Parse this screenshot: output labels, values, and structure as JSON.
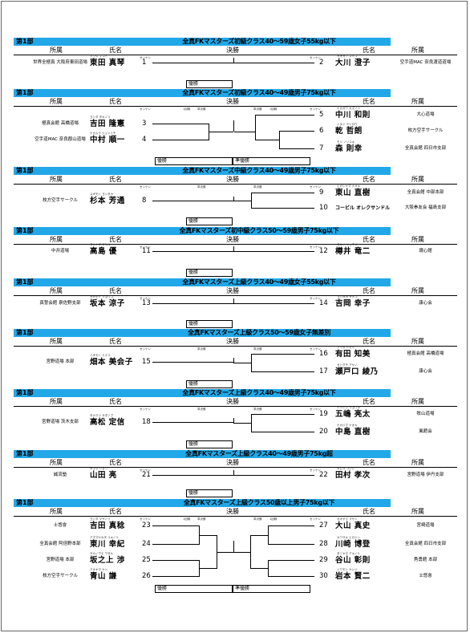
{
  "labels": {
    "division": "第1部",
    "col_affiliation": "所属",
    "col_name": "氏名",
    "col_final": "決勝",
    "col_seed": "ゼッケン",
    "col_semifinal": "準決勝",
    "col_first_round": "1回戦",
    "winner": "優勝",
    "runner_up": "準優勝"
  },
  "sections": [
    {
      "title": "全真FKマスターズ初級クラス40～59歳女子55kg以下",
      "left": [
        {
          "aff": "世界全極真 大阪府東田道場",
          "kana": "トウダ マコト",
          "name": "東田 真琴",
          "num": "1"
        }
      ],
      "right": [
        {
          "aff": "空手道MAC 奈良渡道道場",
          "kana": "オオカワ スミコ",
          "name": "大川 澄子",
          "num": "2"
        }
      ]
    },
    {
      "title": "全真FKマスターズ初級クラス40～49歳男子75kg以下",
      "left": [
        {
          "aff": "極真会館 高橋道場",
          "kana": "ヨシダ タカノリ",
          "name": "吉田 隆憲",
          "num": "3"
        },
        {
          "aff": "空手道MAC 奈良郡山道場",
          "kana": "ナカムラ ジュンイチ",
          "name": "中村 順一",
          "num": "4"
        }
      ],
      "right": [
        {
          "aff": "大心道場",
          "kana": "ナカガワ カズノリ",
          "name": "中川 和則",
          "num": "5"
        },
        {
          "aff": "枚方空手サークル",
          "kana": "イヌイ テツロウ",
          "name": "乾 哲朗",
          "num": "6"
        },
        {
          "aff": "全真会館 四日市支部",
          "kana": "モリ ノリユキ",
          "name": "森 則幸",
          "num": "7"
        }
      ]
    },
    {
      "title": "全真FKマスターズ中級クラス40～49歳男子75kg以下",
      "left": [
        {
          "aff": "枚方空手サークル",
          "kana": "スギモト ヨシタカ",
          "name": "杉本 芳通",
          "num": "8"
        }
      ],
      "right": [
        {
          "aff": "全真会館 中部本部",
          "kana": "ヒガシヤマ ナオキ",
          "name": "東山 直樹",
          "num": "9"
        },
        {
          "aff": "大阪拳友会 福島支部",
          "kana": "",
          "name": "コービル オレクサンドル",
          "num": "10"
        }
      ]
    },
    {
      "title": "全真FKマスターズ初中級クラス50～59歳男子75kg以下",
      "left": [
        {
          "aff": "中井道場",
          "kana": "タカシマ マサル",
          "name": "高島 優",
          "num": "11"
        }
      ],
      "right": [
        {
          "aff": "環心館",
          "kana": "タルイ リュウジ",
          "name": "樽井 竜二",
          "num": "12"
        }
      ]
    },
    {
      "title": "全真FKマスターズ上級クラス40～49歳女子55kg以下",
      "left": [
        {
          "aff": "真誓会館 泉佐野支部",
          "kana": "サカモト リョウコ",
          "name": "坂本 涼子",
          "num": "13"
        }
      ],
      "right": [
        {
          "aff": "康心会",
          "kana": "ヨシオカ サチコ",
          "name": "吉岡 幸子",
          "num": "14"
        }
      ]
    },
    {
      "title": "全真FKマスターズ上級クラス50～59歳女子無差別",
      "left": [
        {
          "aff": "宮野道場 本部",
          "kana": "ハタモト ミエコ",
          "name": "畑本 美会子",
          "num": "15"
        }
      ],
      "right": [
        {
          "aff": "極真会館 高橋道場",
          "kana": "アリタ トモミ",
          "name": "有田 知美",
          "num": "16"
        },
        {
          "aff": "康心会",
          "kana": "セトグチ アヤノ",
          "name": "瀬戸口 綾乃",
          "num": "17"
        }
      ]
    },
    {
      "title": "全真FKマスターズ上級クラス40～49歳男子75kg以下",
      "left": [
        {
          "aff": "宮野道場 茨木支部",
          "kana": "タカマツ サダノブ",
          "name": "高松 定信",
          "num": "18"
        }
      ],
      "right": [
        {
          "aff": "牧山道場",
          "kana": "イツシマ リョウタ",
          "name": "五嶋 亮太",
          "num": "19"
        },
        {
          "aff": "風館会",
          "kana": "ナカジマ ナオキ",
          "name": "中島 直樹",
          "num": "20"
        }
      ]
    },
    {
      "title": "全真FKマスターズ上級クラス40～49歳男子75kg超",
      "left": [
        {
          "aff": "誠流塾",
          "kana": "ヤマダ リョウ",
          "name": "山田 亮",
          "num": "21"
        }
      ],
      "right": [
        {
          "aff": "宮野道場 伊丹支部",
          "kana": "タムラ コウジ",
          "name": "田村 孝次",
          "num": "22"
        }
      ]
    },
    {
      "title": "全真FKマスターズ上級クラス50歳以上男子75kg以下",
      "left": [
        {
          "aff": "士悠會",
          "kana": "ヨシダ マサノリ",
          "name": "吉田 真稔",
          "num": "23"
        },
        {
          "aff": "全真会館 阿倍野本部",
          "kana": "アズマヤカタ ユキノリ",
          "name": "東川 幸紀",
          "num": "24"
        },
        {
          "aff": "宮野道場 本部",
          "kana": "サカノウエ ワタル",
          "name": "坂之上 渉",
          "num": "25"
        },
        {
          "aff": "枚方空手サークル",
          "kana": "アオヤマ ケン",
          "name": "青山 謙",
          "num": "26"
        }
      ],
      "right": [
        {
          "aff": "宮崎道場",
          "kana": "オオヤマ マサシ",
          "name": "大山 真史",
          "num": "27"
        },
        {
          "aff": "全真会館 四日市支部",
          "kana": "カワサキ ヒロトシ",
          "name": "川崎 博登",
          "num": "28"
        },
        {
          "aff": "秀勇館 本部",
          "kana": "タニヤマ アキノリ",
          "name": "谷山 彰則",
          "num": "29"
        },
        {
          "aff": "士悠會",
          "kana": "イワモト ケンジ",
          "name": "岩本 賢二",
          "num": "30"
        }
      ]
    }
  ]
}
